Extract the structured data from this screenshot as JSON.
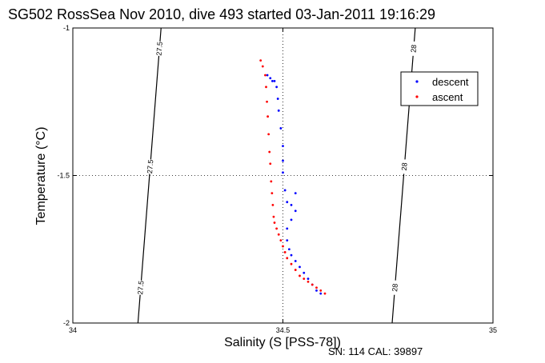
{
  "chart_data": {
    "type": "scatter",
    "title": "SG502 RossSea Nov 2010, dive 493 started 03-Jan-2011 19:16:29",
    "xlabel": "Salinity (S [PSS-78])",
    "ylabel": "Temperature (°C)",
    "xlim": [
      34,
      35
    ],
    "ylim": [
      -2,
      -1
    ],
    "xticks": [
      "34",
      "34.5",
      "35"
    ],
    "yticks": [
      "-1",
      "-1.5",
      "-2"
    ],
    "grid": "dotted",
    "legend_position": "top-right",
    "isopycnals": [
      {
        "label": "27.5",
        "points": [
          [
            34.21,
            -1
          ],
          [
            34.155,
            -2
          ]
        ]
      },
      {
        "label": "28",
        "points": [
          [
            34.815,
            -1
          ],
          [
            34.76,
            -2
          ]
        ]
      }
    ],
    "series": [
      {
        "name": "descent",
        "color": "#0000ff",
        "x": [
          34.463,
          34.47,
          34.475,
          34.48,
          34.485,
          34.488,
          34.49,
          34.495,
          34.5,
          34.5,
          34.5,
          34.505,
          34.51,
          34.52,
          34.53,
          34.53,
          34.52,
          34.51,
          34.51,
          34.515,
          34.52,
          34.53,
          34.54,
          34.55,
          34.56,
          34.57,
          34.58,
          34.59
        ],
        "y": [
          -1.16,
          -1.17,
          -1.18,
          -1.18,
          -1.2,
          -1.24,
          -1.28,
          -1.34,
          -1.4,
          -1.45,
          -1.49,
          -1.55,
          -1.59,
          -1.6,
          -1.56,
          -1.62,
          -1.65,
          -1.68,
          -1.72,
          -1.75,
          -1.77,
          -1.79,
          -1.81,
          -1.83,
          -1.85,
          -1.87,
          -1.89,
          -1.9
        ]
      },
      {
        "name": "ascent",
        "color": "#ff0000",
        "x": [
          34.447,
          34.452,
          34.458,
          34.46,
          34.462,
          34.464,
          34.466,
          34.468,
          34.47,
          34.472,
          34.474,
          34.476,
          34.478,
          34.48,
          34.485,
          34.49,
          34.495,
          34.5,
          34.505,
          34.51,
          34.52,
          34.53,
          34.54,
          34.55,
          34.56,
          34.57,
          34.58,
          34.59,
          34.6
        ],
        "y": [
          -1.11,
          -1.13,
          -1.16,
          -1.2,
          -1.25,
          -1.3,
          -1.36,
          -1.42,
          -1.46,
          -1.52,
          -1.56,
          -1.6,
          -1.64,
          -1.66,
          -1.68,
          -1.7,
          -1.72,
          -1.74,
          -1.76,
          -1.78,
          -1.8,
          -1.82,
          -1.84,
          -1.85,
          -1.86,
          -1.87,
          -1.88,
          -1.89,
          -1.9
        ]
      }
    ]
  },
  "footer": {
    "serial": "SN: 114  CAL: 39897"
  }
}
